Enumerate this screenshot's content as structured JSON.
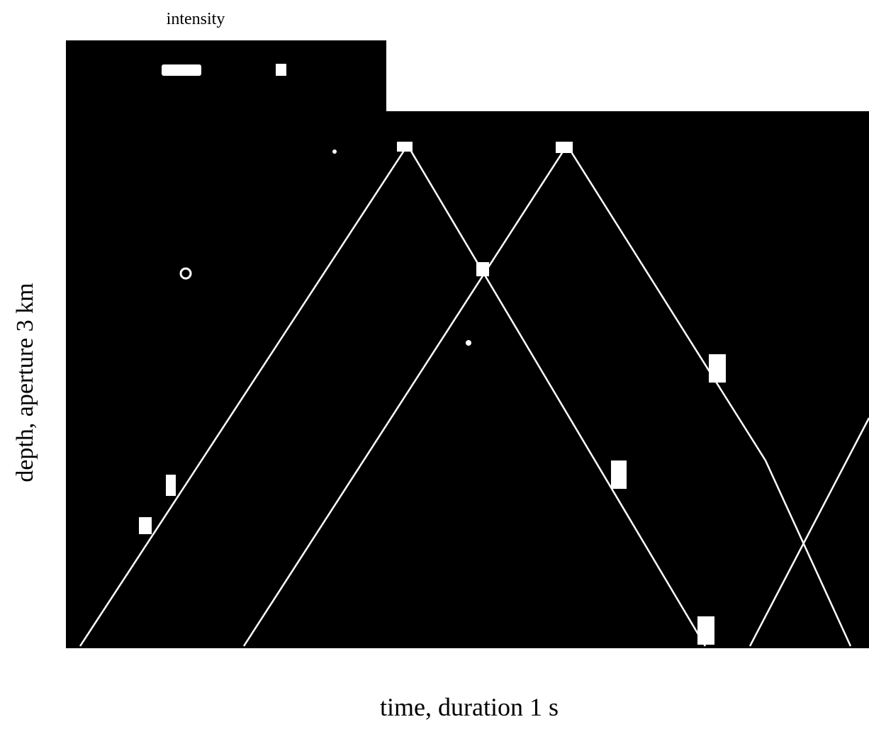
{
  "figure": {
    "top_label": "intensity",
    "y_label": "depth, aperture 3 km",
    "x_label": "time, duration 1 s"
  }
}
